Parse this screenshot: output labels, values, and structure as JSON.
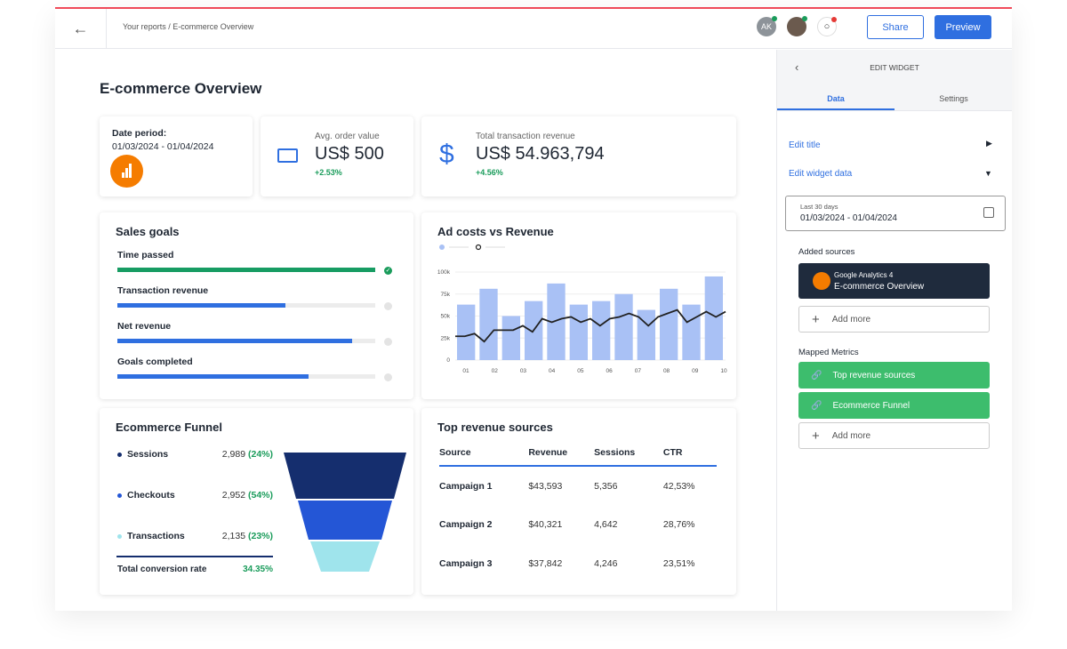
{
  "header": {
    "breadcrumb": "Your reports / E-commerce Overview",
    "avatar_initials": "AK",
    "share": "Share",
    "preview": "Preview"
  },
  "page": {
    "title": "E-commerce Overview"
  },
  "date_card": {
    "label": "Date period:",
    "value": "01/03/2024 - 01/04/2024"
  },
  "aov": {
    "label": "Avg. order value",
    "value": "US$ 500",
    "change": "+2.53%"
  },
  "revenue": {
    "label": "Total transaction revenue",
    "value": "US$ 54.963,794",
    "change": "+4.56%"
  },
  "sales_goals": {
    "title": "Sales goals",
    "items": [
      {
        "label": "Time passed",
        "progress": 1.0,
        "color": "#179c63",
        "done": true
      },
      {
        "label": "Transaction revenue",
        "progress": 0.65,
        "color": "#2f6fe0",
        "done": false
      },
      {
        "label": "Net revenue",
        "progress": 0.91,
        "color": "#2f6fe0",
        "done": false
      },
      {
        "label": "Goals completed",
        "progress": 0.74,
        "color": "#2f6fe0",
        "done": false
      }
    ]
  },
  "chart_data": {
    "type": "bar",
    "title": "Ad costs vs Revenue",
    "ylim": [
      0,
      100000
    ],
    "yticks": [
      "0",
      "25k",
      "50k",
      "75k",
      "100k"
    ],
    "xticks": [
      "01",
      "02",
      "03",
      "04",
      "05",
      "06",
      "07",
      "08",
      "09",
      "10"
    ],
    "bars": [
      63000,
      81000,
      50000,
      67000,
      87000,
      63000,
      67000,
      75000,
      57000,
      81000,
      63000,
      95000
    ],
    "line": [
      27000,
      27000,
      30000,
      21000,
      34000,
      34000,
      34000,
      39000,
      32000,
      47000,
      43000,
      47000,
      49000,
      43000,
      47000,
      39000,
      47000,
      49000,
      53000,
      49000,
      39000,
      49000,
      53000,
      57000,
      43000,
      49000,
      55000,
      49000,
      55000
    ],
    "bar_color": "#a9c1f5",
    "line_color": "#222222"
  },
  "funnel": {
    "title": "Ecommerce Funnel",
    "items": [
      {
        "label": "Sessions",
        "value": "2,989",
        "pct": "(24%)",
        "color": "#152e6e"
      },
      {
        "label": "Checkouts",
        "value": "2,952",
        "pct": "(54%)",
        "color": "#2456d6"
      },
      {
        "label": "Transactions",
        "value": "2,135",
        "pct": "(23%)",
        "color": "#9fe4ec"
      }
    ],
    "total_label": "Total conversion rate",
    "total_value": "34.35%"
  },
  "top_sources": {
    "title": "Top revenue sources",
    "columns": [
      "Source",
      "Revenue",
      "Sessions",
      "CTR"
    ],
    "rows": [
      [
        "Campaign 1",
        "$43,593",
        "5,356",
        "42,53%"
      ],
      [
        "Campaign 2",
        "$40,321",
        "4,642",
        "28,76%"
      ],
      [
        "Campaign 3",
        "$37,842",
        "4,246",
        "23,51%"
      ]
    ]
  },
  "sidebar": {
    "title": "EDIT WIDGET",
    "tabs": [
      "Data",
      "Settings"
    ],
    "edit_title": "Edit title",
    "edit_data": "Edit widget data",
    "date_label": "Last 30 days",
    "date_value": "01/03/2024 - 01/04/2024",
    "added_sources": "Added sources",
    "source_name": "Google Analytics 4",
    "source_sub": "E-commerce Overview",
    "add_more": "Add more",
    "mapped_metrics": "Mapped Metrics",
    "metrics": [
      "Top revenue sources",
      "Ecommerce Funnel"
    ],
    "add_more2": "Add more"
  }
}
